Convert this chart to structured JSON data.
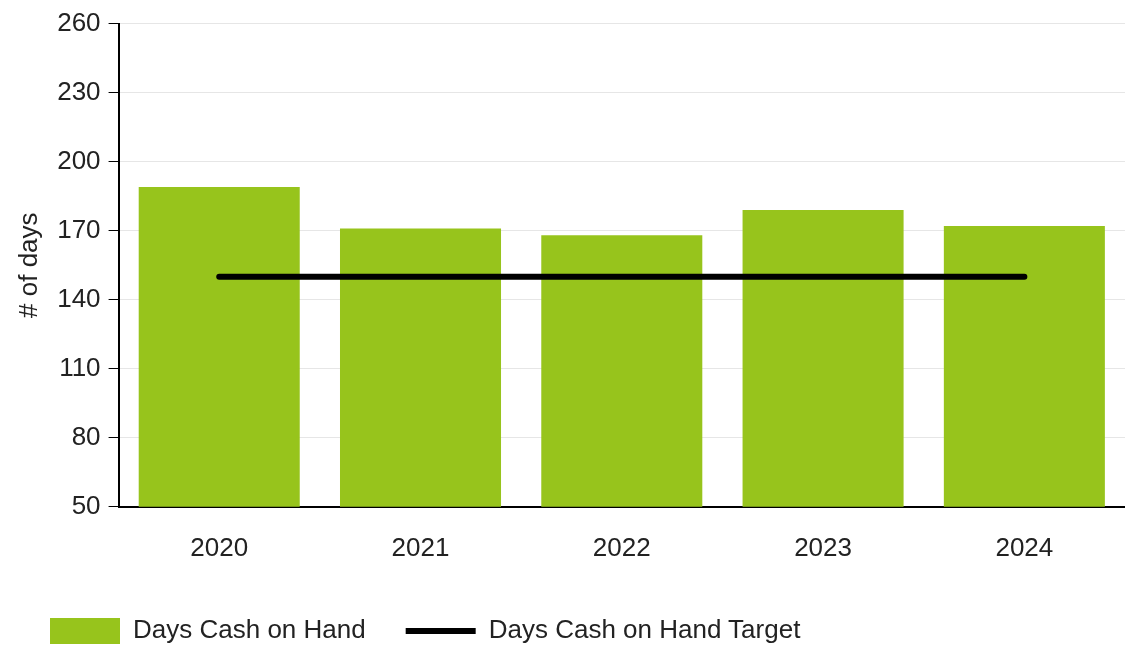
{
  "chart_data": {
    "type": "bar",
    "ylabel": "# of days",
    "categories": [
      "2020",
      "2021",
      "2022",
      "2023",
      "2024"
    ],
    "series": [
      {
        "name": "Days Cash on Hand",
        "color": "#97c41c",
        "values": [
          189,
          171,
          168,
          179,
          172
        ]
      },
      {
        "name": "Days Cash on Hand Target",
        "type": "line",
        "color": "#000000",
        "values": [
          150,
          150,
          150,
          150,
          150
        ]
      }
    ],
    "ylim": [
      50,
      260
    ],
    "yticks": [
      50,
      80,
      110,
      140,
      170,
      200,
      230,
      260
    ],
    "grid": "y",
    "legend": "bottom",
    "marker": "none",
    "line_style": "solid"
  }
}
